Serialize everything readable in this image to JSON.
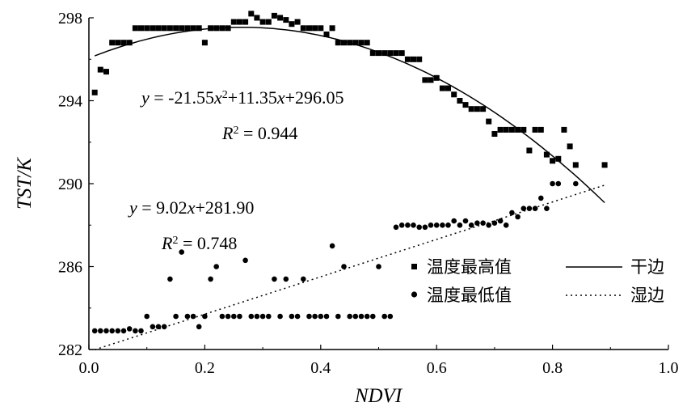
{
  "chart_data": {
    "type": "scatter",
    "xlabel": "NDVI",
    "ylabel": "TST/K",
    "xlim": [
      0,
      1.0
    ],
    "ylim": [
      282,
      298
    ],
    "x_ticks": [
      "0.0",
      "0.2",
      "0.4",
      "0.6",
      "0.8",
      "1.0"
    ],
    "x_tick_values": [
      0,
      0.2,
      0.4,
      0.6,
      0.8,
      1.0
    ],
    "y_ticks": [
      "282",
      "286",
      "290",
      "294",
      "298"
    ],
    "y_tick_values": [
      282,
      286,
      290,
      294,
      298
    ],
    "grid": false,
    "legend_position": "bottom-right",
    "series": [
      {
        "name": "温度最高值",
        "marker": "square",
        "points": [
          [
            0.01,
            294.4
          ],
          [
            0.02,
            295.5
          ],
          [
            0.03,
            295.4
          ],
          [
            0.04,
            296.8
          ],
          [
            0.05,
            296.8
          ],
          [
            0.06,
            296.8
          ],
          [
            0.07,
            296.8
          ],
          [
            0.08,
            297.5
          ],
          [
            0.09,
            297.5
          ],
          [
            0.1,
            297.5
          ],
          [
            0.11,
            297.5
          ],
          [
            0.12,
            297.5
          ],
          [
            0.13,
            297.5
          ],
          [
            0.14,
            297.5
          ],
          [
            0.15,
            297.5
          ],
          [
            0.16,
            297.5
          ],
          [
            0.17,
            297.5
          ],
          [
            0.18,
            297.5
          ],
          [
            0.19,
            297.5
          ],
          [
            0.2,
            296.8
          ],
          [
            0.21,
            297.5
          ],
          [
            0.22,
            297.5
          ],
          [
            0.23,
            297.5
          ],
          [
            0.24,
            297.5
          ],
          [
            0.25,
            297.8
          ],
          [
            0.26,
            297.8
          ],
          [
            0.27,
            297.8
          ],
          [
            0.28,
            298.2
          ],
          [
            0.29,
            298.0
          ],
          [
            0.3,
            297.8
          ],
          [
            0.31,
            297.8
          ],
          [
            0.32,
            298.1
          ],
          [
            0.33,
            298.0
          ],
          [
            0.34,
            297.9
          ],
          [
            0.35,
            297.7
          ],
          [
            0.36,
            297.8
          ],
          [
            0.37,
            297.5
          ],
          [
            0.38,
            297.5
          ],
          [
            0.39,
            297.5
          ],
          [
            0.4,
            297.5
          ],
          [
            0.41,
            297.2
          ],
          [
            0.42,
            297.5
          ],
          [
            0.43,
            296.8
          ],
          [
            0.44,
            296.8
          ],
          [
            0.45,
            296.8
          ],
          [
            0.46,
            296.8
          ],
          [
            0.47,
            296.8
          ],
          [
            0.48,
            296.8
          ],
          [
            0.49,
            296.3
          ],
          [
            0.5,
            296.3
          ],
          [
            0.51,
            296.3
          ],
          [
            0.52,
            296.3
          ],
          [
            0.53,
            296.3
          ],
          [
            0.54,
            296.3
          ],
          [
            0.55,
            296.0
          ],
          [
            0.56,
            296.0
          ],
          [
            0.57,
            296.0
          ],
          [
            0.58,
            295.0
          ],
          [
            0.59,
            295.0
          ],
          [
            0.6,
            295.1
          ],
          [
            0.61,
            294.6
          ],
          [
            0.62,
            294.6
          ],
          [
            0.63,
            294.3
          ],
          [
            0.64,
            294.0
          ],
          [
            0.65,
            293.8
          ],
          [
            0.66,
            293.6
          ],
          [
            0.67,
            293.6
          ],
          [
            0.68,
            293.6
          ],
          [
            0.69,
            293.0
          ],
          [
            0.7,
            292.4
          ],
          [
            0.71,
            292.6
          ],
          [
            0.72,
            292.6
          ],
          [
            0.73,
            292.6
          ],
          [
            0.74,
            292.6
          ],
          [
            0.75,
            292.6
          ],
          [
            0.76,
            291.6
          ],
          [
            0.77,
            292.6
          ],
          [
            0.78,
            292.6
          ],
          [
            0.79,
            291.4
          ],
          [
            0.8,
            291.1
          ],
          [
            0.81,
            291.2
          ],
          [
            0.82,
            292.6
          ],
          [
            0.83,
            291.8
          ],
          [
            0.84,
            290.9
          ],
          [
            0.89,
            290.9
          ]
        ]
      },
      {
        "name": "温度最低值",
        "marker": "circle",
        "points": [
          [
            0.01,
            282.9
          ],
          [
            0.02,
            282.9
          ],
          [
            0.03,
            282.9
          ],
          [
            0.04,
            282.9
          ],
          [
            0.05,
            282.9
          ],
          [
            0.06,
            282.9
          ],
          [
            0.07,
            283.0
          ],
          [
            0.08,
            282.9
          ],
          [
            0.09,
            282.9
          ],
          [
            0.1,
            283.6
          ],
          [
            0.11,
            283.1
          ],
          [
            0.12,
            283.1
          ],
          [
            0.13,
            283.1
          ],
          [
            0.14,
            285.4
          ],
          [
            0.15,
            283.6
          ],
          [
            0.16,
            286.7
          ],
          [
            0.17,
            283.6
          ],
          [
            0.18,
            283.6
          ],
          [
            0.19,
            283.1
          ],
          [
            0.2,
            283.6
          ],
          [
            0.21,
            285.4
          ],
          [
            0.22,
            286.0
          ],
          [
            0.23,
            283.6
          ],
          [
            0.24,
            283.6
          ],
          [
            0.25,
            283.6
          ],
          [
            0.26,
            283.6
          ],
          [
            0.27,
            286.3
          ],
          [
            0.28,
            283.6
          ],
          [
            0.29,
            283.6
          ],
          [
            0.3,
            283.6
          ],
          [
            0.31,
            283.6
          ],
          [
            0.32,
            285.4
          ],
          [
            0.33,
            283.6
          ],
          [
            0.34,
            285.4
          ],
          [
            0.35,
            283.6
          ],
          [
            0.36,
            283.6
          ],
          [
            0.37,
            285.4
          ],
          [
            0.38,
            283.6
          ],
          [
            0.39,
            283.6
          ],
          [
            0.4,
            283.6
          ],
          [
            0.41,
            283.6
          ],
          [
            0.42,
            287.0
          ],
          [
            0.43,
            283.6
          ],
          [
            0.44,
            286.0
          ],
          [
            0.45,
            283.6
          ],
          [
            0.46,
            283.6
          ],
          [
            0.47,
            283.6
          ],
          [
            0.48,
            283.6
          ],
          [
            0.49,
            283.6
          ],
          [
            0.5,
            286.0
          ],
          [
            0.51,
            283.6
          ],
          [
            0.52,
            283.6
          ],
          [
            0.53,
            287.9
          ],
          [
            0.54,
            288.0
          ],
          [
            0.55,
            288.0
          ],
          [
            0.56,
            288.0
          ],
          [
            0.57,
            287.9
          ],
          [
            0.58,
            287.9
          ],
          [
            0.59,
            288.0
          ],
          [
            0.6,
            288.0
          ],
          [
            0.61,
            288.0
          ],
          [
            0.62,
            288.0
          ],
          [
            0.63,
            288.2
          ],
          [
            0.64,
            288.0
          ],
          [
            0.65,
            288.2
          ],
          [
            0.66,
            288.0
          ],
          [
            0.67,
            288.1
          ],
          [
            0.68,
            288.1
          ],
          [
            0.69,
            288.0
          ],
          [
            0.7,
            288.1
          ],
          [
            0.71,
            288.2
          ],
          [
            0.72,
            288.0
          ],
          [
            0.73,
            288.6
          ],
          [
            0.74,
            288.4
          ],
          [
            0.75,
            288.8
          ],
          [
            0.76,
            288.8
          ],
          [
            0.77,
            288.8
          ],
          [
            0.78,
            289.3
          ],
          [
            0.79,
            288.8
          ],
          [
            0.8,
            290.0
          ],
          [
            0.81,
            290.0
          ],
          [
            0.84,
            290.0
          ]
        ]
      },
      {
        "name": "干边",
        "type": "line",
        "style": "solid",
        "coefficients": [
          -21.55,
          11.35,
          296.05
        ],
        "x_range": [
          0.01,
          0.89
        ]
      },
      {
        "name": "湿边",
        "type": "line",
        "style": "dotted",
        "coefficients": [
          0,
          9.02,
          281.9
        ],
        "x_range": [
          0.01,
          0.89
        ]
      }
    ],
    "annotations": [
      {
        "parts": [
          "y",
          " = -21.55",
          "x",
          "2",
          "+11.35",
          "x",
          "+296.05"
        ]
      },
      {
        "parts": [
          "R",
          "2",
          " = 0.944"
        ]
      },
      {
        "parts": [
          "y",
          " = 9.02",
          "x",
          "+281.90"
        ]
      },
      {
        "parts": [
          "R",
          "2",
          " = 0.748"
        ]
      }
    ]
  }
}
